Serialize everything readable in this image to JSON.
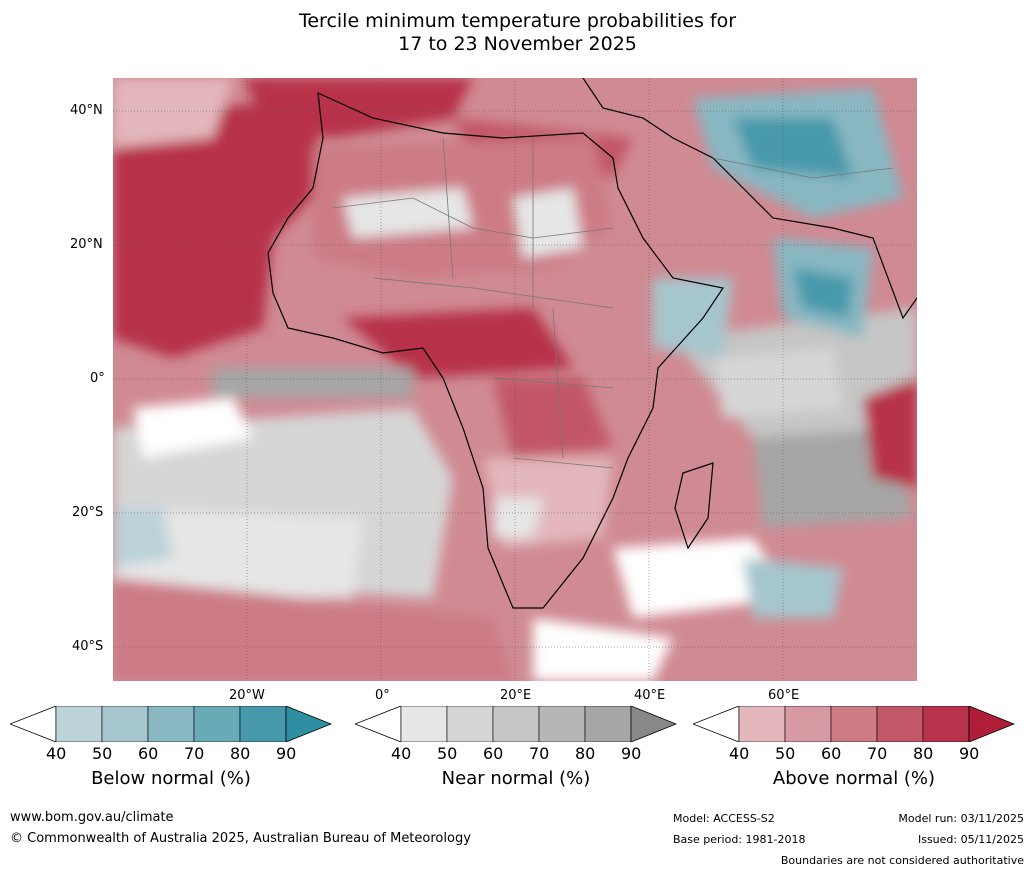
{
  "title": {
    "line1": "Tercile minimum temperature probabilities for",
    "line2": "17 to 23 November 2025"
  },
  "map": {
    "lat_labels": [
      "40°N",
      "20°N",
      "0°",
      "20°S",
      "40°S"
    ],
    "lon_labels": [
      "20°W",
      "0°",
      "20°E",
      "40°E",
      "60°E"
    ]
  },
  "legends": [
    {
      "name": "below",
      "title": "Below normal (%)",
      "ticks": [
        "40",
        "50",
        "60",
        "70",
        "80",
        "90"
      ],
      "colors": [
        "#bcd3da",
        "#a6c6cd",
        "#88b7c2",
        "#69aab7",
        "#4799ab",
        "#2e8ea2"
      ]
    },
    {
      "name": "near",
      "title": "Near normal (%)",
      "ticks": [
        "40",
        "50",
        "60",
        "70",
        "80",
        "90"
      ],
      "colors": [
        "#e6e6e6",
        "#d6d6d6",
        "#c6c6c6",
        "#b6b6b6",
        "#a6a6a6",
        "#888888"
      ]
    },
    {
      "name": "above",
      "title": "Above normal (%)",
      "ticks": [
        "40",
        "50",
        "60",
        "70",
        "80",
        "90"
      ],
      "colors": [
        "#e3b7bc",
        "#d79aa2",
        "#cd7c86",
        "#c25768",
        "#b7324a",
        "#b01d39"
      ]
    }
  ],
  "footer": {
    "website": "www.bom.gov.au/climate",
    "copyright": "© Commonwealth of Australia 2025, Australian Bureau of Meteorology",
    "model": "Model: ACCESS-S2",
    "base_period": "Base period: 1981-2018",
    "model_run": "Model run: 03/11/2025",
    "issued": "Issued: 05/11/2025",
    "disclaimer": "Boundaries are not considered authoritative"
  }
}
